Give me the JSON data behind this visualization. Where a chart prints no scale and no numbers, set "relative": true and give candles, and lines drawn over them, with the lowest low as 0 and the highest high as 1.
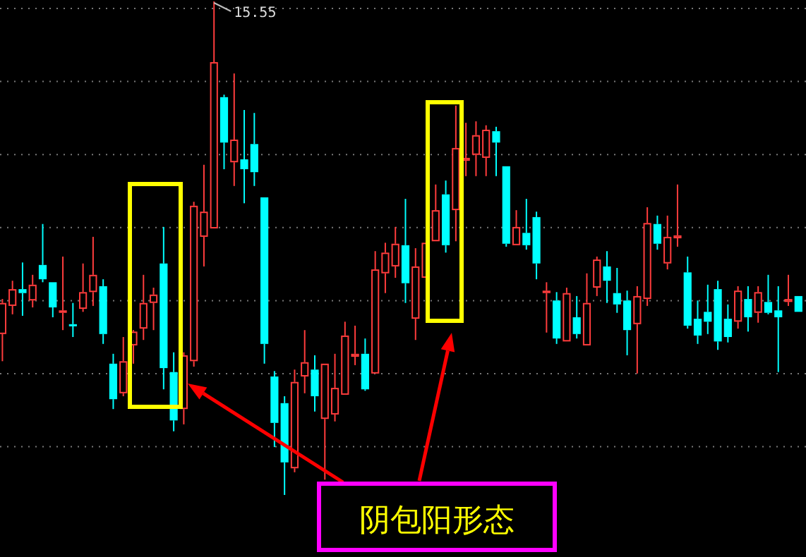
{
  "chart_data": {
    "type": "candlestick",
    "relative": true,
    "grid": "y",
    "categories": [
      null,
      null,
      null,
      null,
      null,
      null,
      null,
      null,
      null,
      null,
      null,
      null,
      null,
      null,
      null,
      null,
      null,
      null,
      null,
      null,
      null,
      null,
      null,
      null,
      null,
      null,
      null,
      null,
      null,
      null,
      null,
      null,
      null,
      null,
      null,
      null,
      null,
      null,
      null,
      null,
      null,
      null,
      null,
      null,
      null,
      null,
      null,
      null,
      null,
      null,
      null,
      null,
      null,
      null,
      null,
      null,
      null,
      null,
      null,
      null,
      null,
      null,
      null,
      null,
      null,
      null,
      null,
      null,
      null,
      null,
      null,
      null,
      null,
      null,
      null,
      null,
      null,
      null,
      null,
      null
    ],
    "ohlc": [
      [
        0.326,
        0.397,
        0.271,
        0.389
      ],
      [
        0.383,
        0.434,
        0.366,
        0.417
      ],
      [
        0.417,
        0.471,
        0.363,
        0.409
      ],
      [
        0.394,
        0.446,
        0.38,
        0.426
      ],
      [
        0.466,
        0.549,
        0.431,
        0.437
      ],
      [
        0.431,
        0.431,
        0.36,
        0.38
      ],
      [
        0.369,
        0.483,
        0.334,
        0.374
      ],
      [
        0.346,
        0.389,
        0.32,
        0.343
      ],
      [
        0.377,
        0.469,
        0.371,
        0.411
      ],
      [
        0.411,
        0.523,
        0.383,
        0.446
      ],
      [
        0.423,
        0.437,
        0.306,
        0.326
      ],
      [
        0.266,
        0.286,
        0.174,
        0.194
      ],
      [
        0.206,
        0.32,
        0.2,
        0.271
      ],
      [
        0.303,
        0.334,
        0.266,
        0.331
      ],
      [
        0.337,
        0.446,
        0.314,
        0.389
      ],
      [
        0.389,
        0.42,
        0.334,
        0.406
      ],
      [
        0.469,
        0.543,
        0.214,
        0.257
      ],
      [
        0.249,
        0.289,
        0.129,
        0.151
      ],
      [
        0.174,
        0.289,
        0.143,
        0.283
      ],
      [
        0.271,
        0.594,
        0.26,
        0.586
      ],
      [
        0.523,
        0.669,
        0.463,
        0.574
      ],
      [
        0.54,
        1.0,
        0.54,
        0.877
      ],
      [
        0.806,
        0.811,
        0.66,
        0.714
      ],
      [
        0.674,
        0.854,
        0.626,
        0.72
      ],
      [
        0.68,
        0.78,
        0.591,
        0.66
      ],
      [
        0.711,
        0.774,
        0.626,
        0.654
      ],
      [
        0.603,
        0.603,
        0.266,
        0.306
      ],
      [
        0.24,
        0.251,
        0.097,
        0.146
      ],
      [
        0.186,
        0.2,
        0.0,
        0.066
      ],
      [
        0.054,
        0.254,
        0.046,
        0.229
      ],
      [
        0.24,
        0.334,
        0.206,
        0.269
      ],
      [
        0.254,
        0.283,
        0.169,
        0.2
      ],
      [
        0.154,
        0.266,
        0.031,
        0.266
      ],
      [
        0.163,
        0.286,
        0.149,
        0.217
      ],
      [
        0.203,
        0.351,
        0.203,
        0.323
      ],
      [
        0.28,
        0.343,
        0.263,
        0.286
      ],
      [
        0.286,
        0.317,
        0.211,
        0.214
      ],
      [
        0.246,
        0.494,
        0.246,
        0.457
      ],
      [
        0.449,
        0.511,
        0.409,
        0.491
      ],
      [
        0.463,
        0.543,
        0.44,
        0.509
      ],
      [
        0.506,
        0.6,
        0.389,
        0.429
      ],
      [
        0.357,
        0.5,
        0.314,
        0.463
      ],
      [
        0.44,
        0.511,
        0.44,
        0.511
      ],
      [
        0.514,
        0.629,
        0.514,
        0.577
      ],
      [
        0.609,
        0.637,
        0.491,
        0.506
      ],
      [
        0.577,
        0.789,
        0.514,
        0.703
      ],
      [
        0.677,
        0.754,
        0.646,
        0.683
      ],
      [
        0.689,
        0.757,
        0.646,
        0.729
      ],
      [
        0.683,
        0.749,
        0.646,
        0.74
      ],
      [
        0.737,
        0.746,
        0.646,
        0.714
      ],
      [
        0.666,
        0.666,
        0.503,
        0.509
      ],
      [
        0.506,
        0.577,
        0.506,
        0.543
      ],
      [
        0.531,
        0.6,
        0.497,
        0.506
      ],
      [
        0.563,
        0.574,
        0.437,
        0.469
      ],
      [
        0.409,
        0.431,
        0.329,
        0.414
      ],
      [
        0.394,
        0.411,
        0.306,
        0.317
      ],
      [
        0.311,
        0.42,
        0.311,
        0.409
      ],
      [
        0.36,
        0.403,
        0.317,
        0.326
      ],
      [
        0.303,
        0.449,
        0.303,
        0.389
      ],
      [
        0.42,
        0.483,
        0.403,
        0.477
      ],
      [
        0.463,
        0.494,
        0.389,
        0.434
      ],
      [
        0.409,
        0.46,
        0.369,
        0.386
      ],
      [
        0.394,
        0.414,
        0.283,
        0.334
      ],
      [
        0.346,
        0.423,
        0.246,
        0.403
      ],
      [
        0.397,
        0.583,
        0.383,
        0.551
      ],
      [
        0.549,
        0.566,
        0.497,
        0.509
      ],
      [
        0.469,
        0.566,
        0.457,
        0.523
      ],
      [
        0.52,
        0.629,
        0.503,
        0.526
      ],
      [
        0.451,
        0.483,
        0.337,
        0.343
      ],
      [
        0.357,
        0.394,
        0.306,
        0.323
      ],
      [
        0.371,
        0.426,
        0.326,
        0.351
      ],
      [
        0.417,
        0.434,
        0.294,
        0.311
      ],
      [
        0.357,
        0.386,
        0.309,
        0.32
      ],
      [
        0.351,
        0.423,
        0.337,
        0.414
      ],
      [
        0.397,
        0.423,
        0.331,
        0.36
      ],
      [
        0.369,
        0.423,
        0.349,
        0.411
      ],
      [
        0.391,
        0.446,
        0.366,
        0.369
      ],
      [
        0.374,
        0.423,
        0.249,
        0.36
      ],
      [
        0.391,
        0.446,
        0.383,
        0.397
      ],
      [
        0.403,
        0.403,
        0.371,
        0.371
      ]
    ],
    "colors": [
      "#ff3c3c",
      "#ff3c3c",
      "#00ffff",
      "#ff3c3c",
      "#00ffff",
      "#00ffff",
      "#ff3c3c",
      "#00ffff",
      "#ff3c3c",
      "#ff3c3c",
      "#00ffff",
      "#00ffff",
      "#ff3c3c",
      "#ff3c3c",
      "#ff3c3c",
      "#ff3c3c",
      "#00ffff",
      "#00ffff",
      "#ff3c3c",
      "#ff3c3c",
      "#ff3c3c",
      "#ff3c3c",
      "#00ffff",
      "#ff3c3c",
      "#00ffff",
      "#00ffff",
      "#00ffff",
      "#00ffff",
      "#00ffff",
      "#ff3c3c",
      "#ff3c3c",
      "#00ffff",
      "#ff3c3c",
      "#ff3c3c",
      "#ff3c3c",
      "#ff3c3c",
      "#00ffff",
      "#ff3c3c",
      "#ff3c3c",
      "#ff3c3c",
      "#00ffff",
      "#ff3c3c",
      "#ff3c3c",
      "#ff3c3c",
      "#00ffff",
      "#ff3c3c",
      "#ff3c3c",
      "#ff3c3c",
      "#ff3c3c",
      "#00ffff",
      "#00ffff",
      "#ff3c3c",
      "#00ffff",
      "#00ffff",
      "#ff3c3c",
      "#00ffff",
      "#ff3c3c",
      "#00ffff",
      "#ff3c3c",
      "#ff3c3c",
      "#00ffff",
      "#00ffff",
      "#00ffff",
      "#ff3c3c",
      "#ff3c3c",
      "#00ffff",
      "#ff3c3c",
      "#ff3c3c",
      "#00ffff",
      "#00ffff",
      "#00ffff",
      "#00ffff",
      "#00ffff",
      "#ff3c3c",
      "#00ffff",
      "#ff3c3c",
      "#00ffff",
      "#00ffff",
      "#ff3c3c",
      "#00ffff"
    ],
    "annotations": [
      "15.55",
      "阴包阳形态"
    ]
  }
}
